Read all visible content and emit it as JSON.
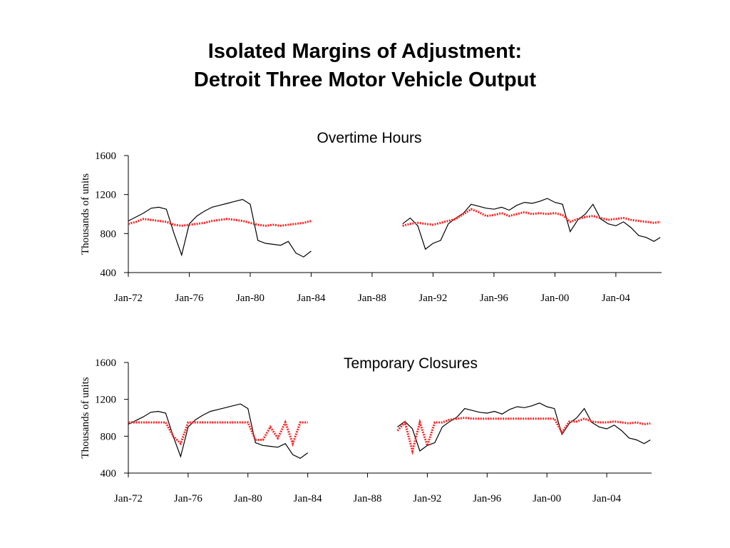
{
  "title_line1": "Isolated Margins of Adjustment:",
  "title_line2": "Detroit Three Motor Vehicle Output",
  "colors": {
    "actual": "#000000",
    "simulated": "#ff2020"
  },
  "chart_data": [
    {
      "type": "line",
      "title": "Overtime Hours",
      "ylabel": "Thousands of units",
      "xlabel": "",
      "ylim": [
        400,
        1600
      ],
      "yticks": [
        "400",
        "800",
        "1200",
        "1600"
      ],
      "xlim": [
        "1972-01",
        "2006-12"
      ],
      "xticks": [
        "Jan-72",
        "Jan-76",
        "Jan-80",
        "Jan-84",
        "Jan-88",
        "Jan-92",
        "Jan-96",
        "Jan-00",
        "Jan-04"
      ],
      "grid": false,
      "series": [
        {
          "style": "solid-black",
          "x": [
            "1972-01",
            "1972-07",
            "1973-01",
            "1973-07",
            "1974-01",
            "1974-07",
            "1975-01",
            "1975-07",
            "1976-01",
            "1976-07",
            "1977-01",
            "1977-07",
            "1978-01",
            "1978-07",
            "1979-01",
            "1979-07",
            "1980-01",
            "1980-07",
            "1981-01",
            "1981-07",
            "1982-01",
            "1982-07",
            "1983-01",
            "1983-07",
            "1984-01",
            "1990-01",
            "1990-07",
            "1991-01",
            "1991-07",
            "1992-01",
            "1992-07",
            "1993-01",
            "1993-07",
            "1994-01",
            "1994-07",
            "1995-01",
            "1995-07",
            "1996-01",
            "1996-07",
            "1997-01",
            "1997-07",
            "1998-01",
            "1998-07",
            "1999-01",
            "1999-07",
            "2000-01",
            "2000-07",
            "2001-01",
            "2001-07",
            "2002-01",
            "2002-07",
            "2003-01",
            "2003-07",
            "2004-01",
            "2004-07",
            "2005-01",
            "2005-07",
            "2006-01",
            "2006-07",
            "2006-12"
          ],
          "values": [
            930,
            970,
            1010,
            1060,
            1070,
            1050,
            800,
            580,
            900,
            980,
            1030,
            1070,
            1090,
            1110,
            1130,
            1150,
            1100,
            730,
            700,
            690,
            680,
            720,
            600,
            560,
            620,
            900,
            960,
            880,
            640,
            700,
            730,
            900,
            960,
            1010,
            1100,
            1080,
            1060,
            1050,
            1070,
            1040,
            1090,
            1120,
            1110,
            1130,
            1160,
            1120,
            1100,
            820,
            940,
            1000,
            1100,
            950,
            900,
            880,
            920,
            860,
            780,
            760,
            720,
            760
          ]
        },
        {
          "style": "dotted-red",
          "x": [
            "1972-01",
            "1972-07",
            "1973-01",
            "1973-07",
            "1974-01",
            "1974-07",
            "1975-01",
            "1975-07",
            "1976-01",
            "1976-07",
            "1977-01",
            "1977-07",
            "1978-01",
            "1978-07",
            "1979-01",
            "1979-07",
            "1980-01",
            "1980-07",
            "1981-01",
            "1981-07",
            "1982-01",
            "1982-07",
            "1983-01",
            "1983-07",
            "1984-01",
            "1990-01",
            "1990-07",
            "1991-01",
            "1991-07",
            "1992-01",
            "1992-07",
            "1993-01",
            "1993-07",
            "1994-01",
            "1994-07",
            "1995-01",
            "1995-07",
            "1996-01",
            "1996-07",
            "1997-01",
            "1997-07",
            "1998-01",
            "1998-07",
            "1999-01",
            "1999-07",
            "2000-01",
            "2000-07",
            "2001-01",
            "2001-07",
            "2002-01",
            "2002-07",
            "2003-01",
            "2003-07",
            "2004-01",
            "2004-07",
            "2005-01",
            "2005-07",
            "2006-01",
            "2006-07",
            "2006-12"
          ],
          "values": [
            900,
            920,
            950,
            940,
            930,
            920,
            890,
            880,
            890,
            900,
            910,
            930,
            940,
            950,
            940,
            930,
            910,
            890,
            880,
            890,
            880,
            890,
            900,
            910,
            930,
            880,
            900,
            910,
            900,
            890,
            910,
            930,
            950,
            1000,
            1050,
            1020,
            980,
            990,
            1010,
            980,
            1000,
            1020,
            1000,
            1010,
            1000,
            1010,
            990,
            920,
            950,
            970,
            980,
            960,
            940,
            950,
            960,
            940,
            930,
            920,
            910,
            920
          ]
        }
      ]
    },
    {
      "type": "line",
      "title": "Temporary Closures",
      "ylabel": "Thousands of units",
      "xlabel": "",
      "ylim": [
        400,
        1600
      ],
      "yticks": [
        "400",
        "800",
        "1200",
        "1600"
      ],
      "xlim": [
        "1972-01",
        "2006-12"
      ],
      "xticks": [
        "Jan-72",
        "Jan-76",
        "Jan-80",
        "Jan-84",
        "Jan-88",
        "Jan-92",
        "Jan-96",
        "Jan-00",
        "Jan-04"
      ],
      "grid": false,
      "series": [
        {
          "style": "solid-black",
          "x": [
            "1972-01",
            "1972-07",
            "1973-01",
            "1973-07",
            "1974-01",
            "1974-07",
            "1975-01",
            "1975-07",
            "1976-01",
            "1976-07",
            "1977-01",
            "1977-07",
            "1978-01",
            "1978-07",
            "1979-01",
            "1979-07",
            "1980-01",
            "1980-07",
            "1981-01",
            "1981-07",
            "1982-01",
            "1982-07",
            "1983-01",
            "1983-07",
            "1984-01",
            "1990-01",
            "1990-07",
            "1991-01",
            "1991-07",
            "1992-01",
            "1992-07",
            "1993-01",
            "1993-07",
            "1994-01",
            "1994-07",
            "1995-01",
            "1995-07",
            "1996-01",
            "1996-07",
            "1997-01",
            "1997-07",
            "1998-01",
            "1998-07",
            "1999-01",
            "1999-07",
            "2000-01",
            "2000-07",
            "2001-01",
            "2001-07",
            "2002-01",
            "2002-07",
            "2003-01",
            "2003-07",
            "2004-01",
            "2004-07",
            "2005-01",
            "2005-07",
            "2006-01",
            "2006-07",
            "2006-12"
          ],
          "values": [
            930,
            970,
            1010,
            1060,
            1070,
            1050,
            800,
            580,
            900,
            980,
            1030,
            1070,
            1090,
            1110,
            1130,
            1150,
            1100,
            730,
            700,
            690,
            680,
            720,
            600,
            560,
            620,
            900,
            960,
            880,
            640,
            700,
            730,
            900,
            960,
            1010,
            1100,
            1080,
            1060,
            1050,
            1070,
            1040,
            1090,
            1120,
            1110,
            1130,
            1160,
            1120,
            1100,
            820,
            940,
            1000,
            1100,
            950,
            900,
            880,
            920,
            860,
            780,
            760,
            720,
            760
          ]
        },
        {
          "style": "dotted-red",
          "x": [
            "1972-01",
            "1972-07",
            "1973-01",
            "1973-07",
            "1974-01",
            "1974-07",
            "1975-01",
            "1975-07",
            "1976-01",
            "1976-07",
            "1977-01",
            "1977-07",
            "1978-01",
            "1978-07",
            "1979-01",
            "1979-07",
            "1980-01",
            "1980-07",
            "1981-01",
            "1981-07",
            "1982-01",
            "1982-07",
            "1983-01",
            "1983-07",
            "1984-01",
            "1990-01",
            "1990-07",
            "1991-01",
            "1991-07",
            "1992-01",
            "1992-07",
            "1993-01",
            "1993-07",
            "1994-01",
            "1994-07",
            "1995-01",
            "1995-07",
            "1996-01",
            "1996-07",
            "1997-01",
            "1997-07",
            "1998-01",
            "1998-07",
            "1999-01",
            "1999-07",
            "2000-01",
            "2000-07",
            "2001-01",
            "2001-07",
            "2002-01",
            "2002-07",
            "2003-01",
            "2003-07",
            "2004-01",
            "2004-07",
            "2005-01",
            "2005-07",
            "2006-01",
            "2006-07",
            "2006-12"
          ],
          "values": [
            950,
            950,
            950,
            950,
            950,
            950,
            800,
            720,
            950,
            950,
            950,
            950,
            950,
            950,
            950,
            950,
            950,
            760,
            760,
            900,
            780,
            950,
            720,
            950,
            950,
            860,
            950,
            640,
            950,
            700,
            950,
            950,
            980,
            990,
            1000,
            990,
            990,
            990,
            990,
            990,
            990,
            990,
            990,
            990,
            990,
            990,
            990,
            840,
            960,
            960,
            990,
            960,
            950,
            950,
            960,
            950,
            940,
            950,
            930,
            940
          ]
        }
      ]
    }
  ]
}
